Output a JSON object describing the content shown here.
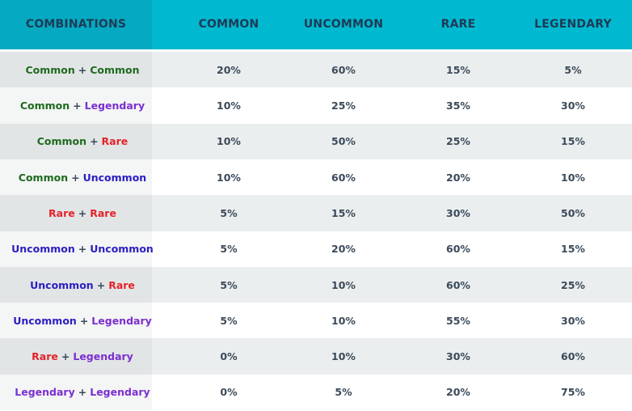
{
  "header": [
    "COMBINATIONS",
    "COMMON",
    "UNCOMMON",
    "RARE",
    "LEGENDARY"
  ],
  "colors": {
    "common": "#1e6a1e",
    "uncommon": "#2a1ec2",
    "rare": "#e4232a",
    "legendary": "#7b2fd0",
    "header_bg": "#00b8cf",
    "header_text": "#1e3a55"
  },
  "plus": "+",
  "rows": [
    {
      "a": "Common",
      "at": "common",
      "b": "Common",
      "bt": "common",
      "vals": [
        "20%",
        "60%",
        "15%",
        "5%"
      ]
    },
    {
      "a": "Common",
      "at": "common",
      "b": "Legendary",
      "bt": "legendary",
      "vals": [
        "10%",
        "25%",
        "35%",
        "30%"
      ]
    },
    {
      "a": "Common",
      "at": "common",
      "b": "Rare",
      "bt": "rare",
      "vals": [
        "10%",
        "50%",
        "25%",
        "15%"
      ]
    },
    {
      "a": "Common",
      "at": "common",
      "b": "Uncommon",
      "bt": "uncommon",
      "vals": [
        "10%",
        "60%",
        "20%",
        "10%"
      ]
    },
    {
      "a": "Rare",
      "at": "rare",
      "b": "Rare",
      "bt": "rare",
      "vals": [
        "5%",
        "15%",
        "30%",
        "50%"
      ]
    },
    {
      "a": "Uncommon",
      "at": "uncommon",
      "b": "Uncommon",
      "bt": "uncommon",
      "vals": [
        "5%",
        "20%",
        "60%",
        "15%"
      ]
    },
    {
      "a": "Uncommon",
      "at": "uncommon",
      "b": "Rare",
      "bt": "rare",
      "vals": [
        "5%",
        "10%",
        "60%",
        "25%"
      ]
    },
    {
      "a": "Uncommon",
      "at": "uncommon",
      "b": "Legendary",
      "bt": "legendary",
      "vals": [
        "5%",
        "10%",
        "55%",
        "30%"
      ]
    },
    {
      "a": "Rare",
      "at": "rare",
      "b": "Legendary",
      "bt": "legendary",
      "vals": [
        "0%",
        "10%",
        "30%",
        "60%"
      ]
    },
    {
      "a": "Legendary",
      "at": "legendary",
      "b": "Legendary",
      "bt": "legendary",
      "vals": [
        "0%",
        "5%",
        "20%",
        "75%"
      ]
    }
  ]
}
